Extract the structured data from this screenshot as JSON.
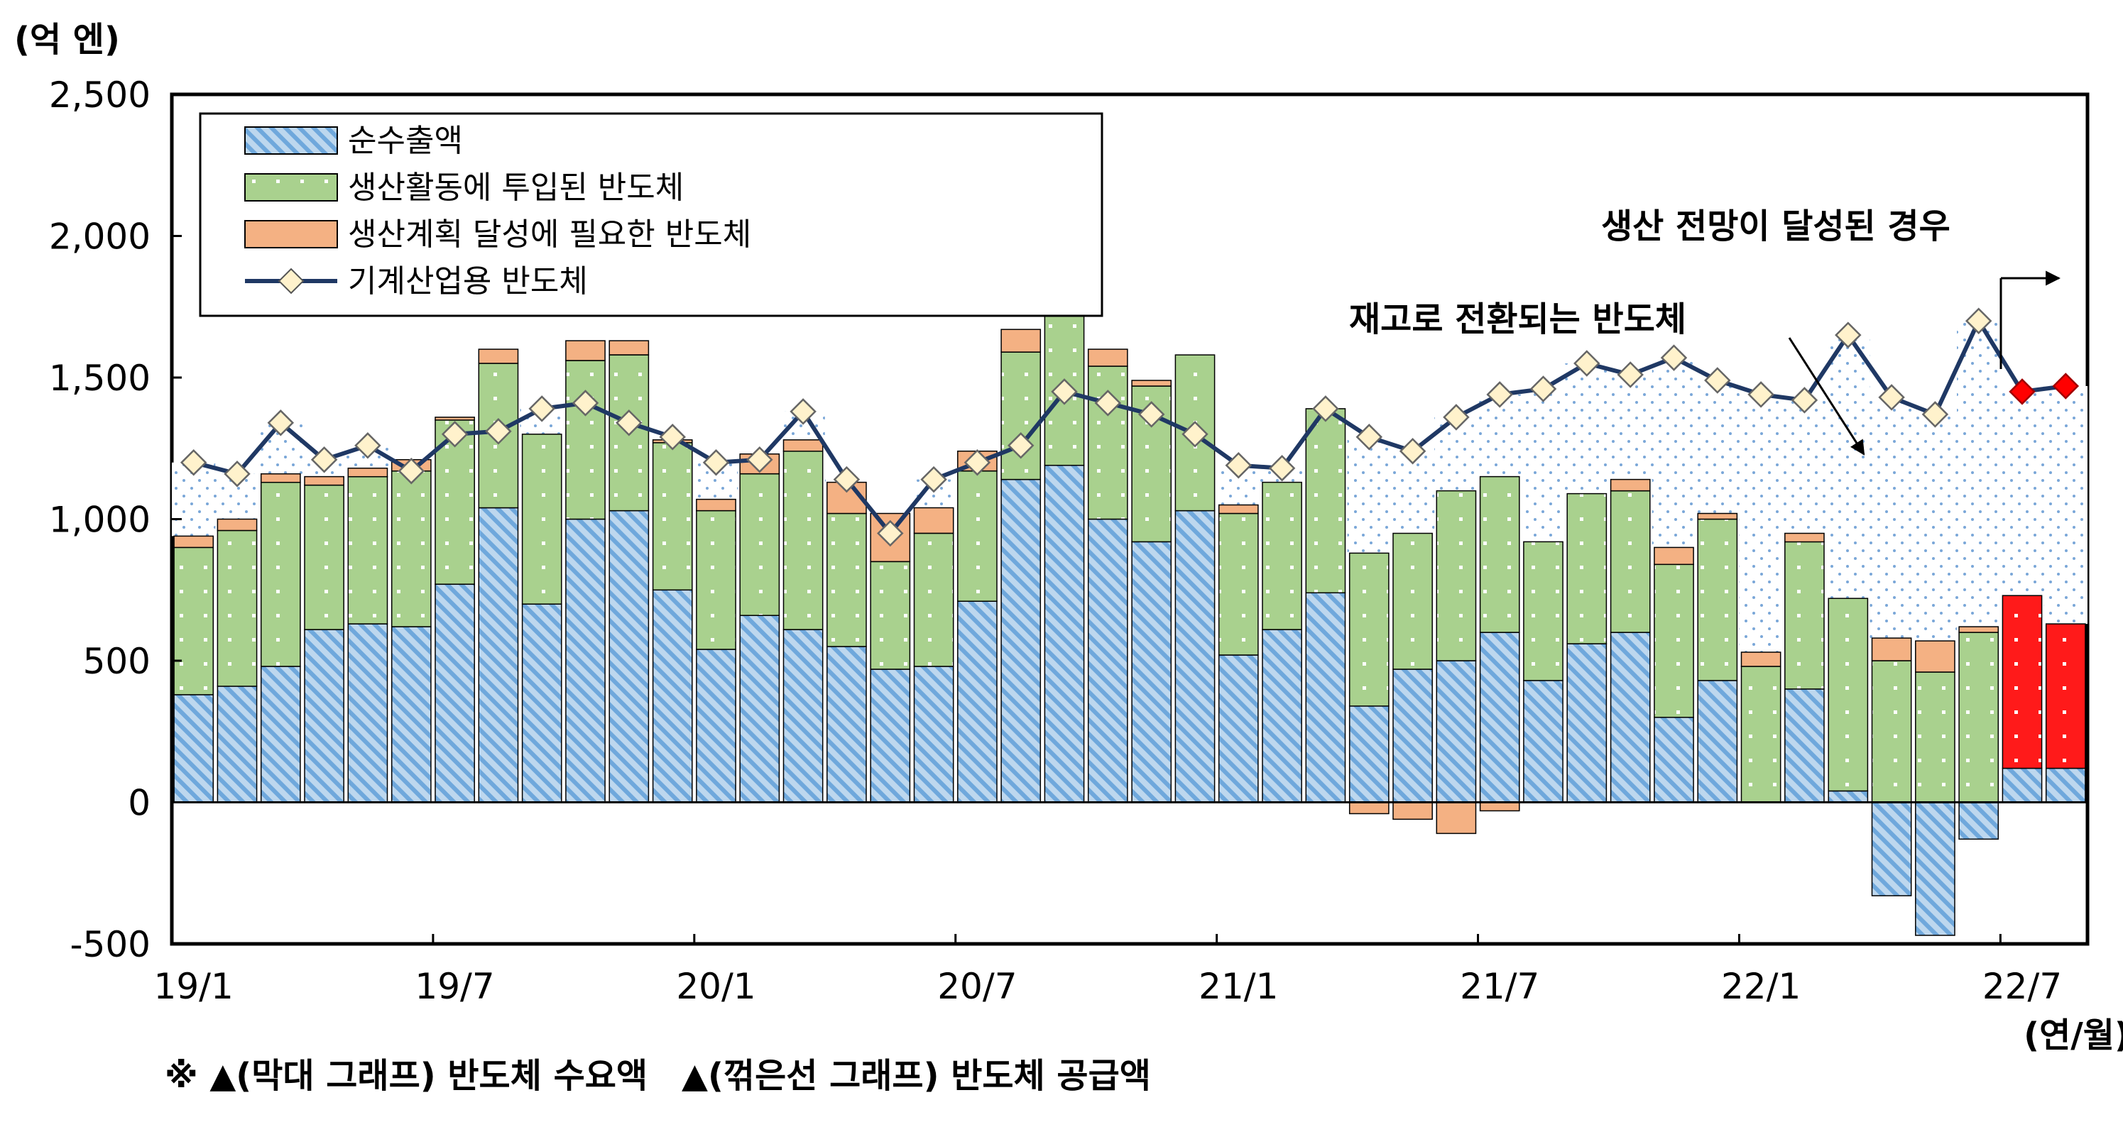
{
  "chart_data": {
    "type": "bar",
    "stacked": true,
    "y_unit": "(억 엔)",
    "x_unit": "(연/월)",
    "ylim": [
      -500,
      2500
    ],
    "yticks": [
      -500,
      0,
      500,
      1000,
      1500,
      2000,
      2500
    ],
    "ytick_labels": [
      "-500",
      "0",
      "500",
      "1,000",
      "1,500",
      "2,000",
      "2,500"
    ],
    "categories": [
      "19/1",
      "19/2",
      "19/3",
      "19/4",
      "19/5",
      "19/6",
      "19/7",
      "19/8",
      "19/9",
      "19/10",
      "19/11",
      "19/12",
      "20/1",
      "20/2",
      "20/3",
      "20/4",
      "20/5",
      "20/6",
      "20/7",
      "20/8",
      "20/9",
      "20/10",
      "20/11",
      "20/12",
      "21/1",
      "21/2",
      "21/3",
      "21/4",
      "21/5",
      "21/6",
      "21/7",
      "21/8",
      "21/9",
      "21/10",
      "21/11",
      "21/12",
      "22/1",
      "22/2",
      "22/3",
      "22/4",
      "22/5",
      "22/6",
      "22/7",
      "22/8"
    ],
    "xtick_labels": [
      {
        "index": 0,
        "label": "19/1"
      },
      {
        "index": 6,
        "label": "19/7"
      },
      {
        "index": 12,
        "label": "20/1"
      },
      {
        "index": 18,
        "label": "20/7"
      },
      {
        "index": 24,
        "label": "21/1"
      },
      {
        "index": 30,
        "label": "21/7"
      },
      {
        "index": 36,
        "label": "22/1"
      },
      {
        "index": 42,
        "label": "22/7"
      }
    ],
    "series": [
      {
        "name": "순수출액",
        "kind": "bar",
        "color": "#9dc3e6",
        "values": [
          380,
          410,
          480,
          610,
          630,
          620,
          770,
          1040,
          700,
          1000,
          1030,
          750,
          540,
          660,
          610,
          550,
          470,
          480,
          710,
          1140,
          1190,
          1000,
          920,
          1030,
          520,
          610,
          740,
          340,
          470,
          500,
          600,
          430,
          560,
          600,
          300,
          430,
          0,
          400,
          40,
          -330,
          -470,
          -130,
          120,
          120
        ]
      },
      {
        "name": "생산활동에 투입된 반도체",
        "kind": "bar",
        "color": "#a9d18e",
        "values": [
          520,
          550,
          650,
          510,
          520,
          550,
          580,
          510,
          600,
          560,
          550,
          520,
          490,
          500,
          630,
          470,
          380,
          470,
          460,
          450,
          540,
          540,
          550,
          550,
          500,
          520,
          650,
          540,
          480,
          600,
          550,
          490,
          530,
          500,
          540,
          570,
          480,
          520,
          680,
          500,
          460,
          600,
          0,
          0
        ]
      },
      {
        "name": "생산계획 달성에 필요한 반도체",
        "kind": "bar",
        "color": "#f4b183",
        "values": [
          40,
          40,
          30,
          30,
          30,
          40,
          10,
          50,
          0,
          70,
          50,
          10,
          40,
          70,
          40,
          110,
          170,
          90,
          70,
          80,
          60,
          60,
          20,
          0,
          30,
          0,
          0,
          -40,
          -60,
          -110,
          -30,
          0,
          0,
          40,
          60,
          20,
          50,
          30,
          0,
          80,
          110,
          20,
          0,
          0
        ]
      },
      {
        "name": "생산 전망이 달성된 경우",
        "kind": "bar",
        "color": "#ff1a1a",
        "values": [
          0,
          0,
          0,
          0,
          0,
          0,
          0,
          0,
          0,
          0,
          0,
          0,
          0,
          0,
          0,
          0,
          0,
          0,
          0,
          0,
          0,
          0,
          0,
          0,
          0,
          0,
          0,
          0,
          0,
          0,
          0,
          0,
          0,
          0,
          0,
          0,
          0,
          0,
          0,
          0,
          0,
          0,
          610,
          510
        ]
      },
      {
        "name": "기계산업용 반도체",
        "kind": "line",
        "color": "#1f3864",
        "values": [
          1200,
          1160,
          1340,
          1210,
          1260,
          1170,
          1300,
          1310,
          1390,
          1410,
          1340,
          1290,
          1200,
          1210,
          1380,
          1140,
          950,
          1140,
          1200,
          1260,
          1450,
          1410,
          1370,
          1300,
          1190,
          1180,
          1390,
          1290,
          1240,
          1360,
          1440,
          1460,
          1550,
          1510,
          1570,
          1490,
          1440,
          1420,
          1650,
          1430,
          1370,
          1700,
          1450,
          1470
        ],
        "projected_from_index": 42,
        "projected_color": "#ff0000"
      }
    ],
    "annotations": [
      {
        "text": "생산 전망이 달성된 경우"
      },
      {
        "text": "재고로 전환되는 반도체"
      }
    ],
    "legend": {
      "placement": "top-left",
      "entries": [
        "순수출액",
        "생산활동에 투입된 반도체",
        "생산계획 달성에 필요한 반도체",
        "기계산업용 반도체"
      ]
    },
    "grid": false
  },
  "footnote": "※ ▲(막대 그래프) 반도체 수요액　▲(꺾은선 그래프) 반도체 공급액"
}
